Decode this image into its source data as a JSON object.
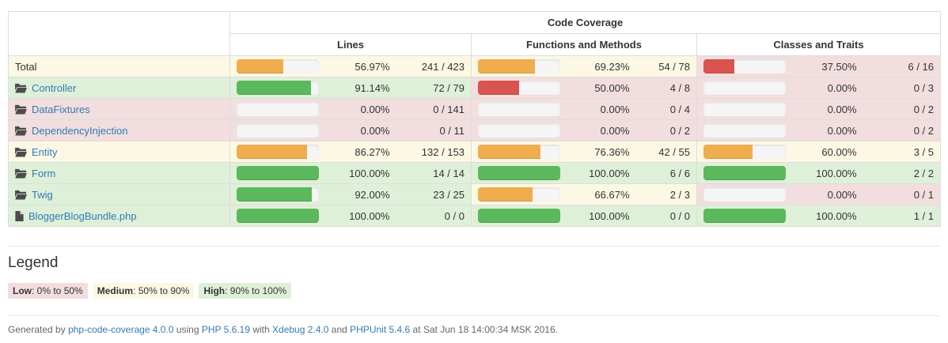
{
  "header": {
    "code_coverage_label": "Code Coverage",
    "group_labels": [
      "Lines",
      "Functions and Methods",
      "Classes and Traits"
    ]
  },
  "rows": [
    {
      "name": "Total",
      "icon": "none",
      "is_link": false,
      "level": "warning",
      "cells": [
        {
          "level": "warning",
          "bar_pct": 56.97,
          "bar_color": "warning",
          "pct": "56.97%",
          "ratio": "241 / 423"
        },
        {
          "level": "warning",
          "bar_pct": 69.23,
          "bar_color": "warning",
          "pct": "69.23%",
          "ratio": "54 / 78"
        },
        {
          "level": "danger",
          "bar_pct": 37.5,
          "bar_color": "danger",
          "pct": "37.50%",
          "ratio": "6 / 16"
        }
      ]
    },
    {
      "name": "Controller",
      "icon": "folder",
      "is_link": true,
      "level": "success",
      "cells": [
        {
          "level": "success",
          "bar_pct": 91.14,
          "bar_color": "success",
          "pct": "91.14%",
          "ratio": "72 / 79"
        },
        {
          "level": "danger",
          "bar_pct": 50.0,
          "bar_color": "danger",
          "pct": "50.00%",
          "ratio": "4 / 8"
        },
        {
          "level": "danger",
          "bar_pct": 0,
          "bar_color": "none",
          "pct": "0.00%",
          "ratio": "0 / 3"
        }
      ]
    },
    {
      "name": "DataFixtures",
      "icon": "folder",
      "is_link": true,
      "level": "danger",
      "cells": [
        {
          "level": "danger",
          "bar_pct": 0,
          "bar_color": "none",
          "pct": "0.00%",
          "ratio": "0 / 141"
        },
        {
          "level": "danger",
          "bar_pct": 0,
          "bar_color": "none",
          "pct": "0.00%",
          "ratio": "0 / 4"
        },
        {
          "level": "danger",
          "bar_pct": 0,
          "bar_color": "none",
          "pct": "0.00%",
          "ratio": "0 / 2"
        }
      ]
    },
    {
      "name": "DependencyInjection",
      "icon": "folder",
      "is_link": true,
      "level": "danger",
      "cells": [
        {
          "level": "danger",
          "bar_pct": 0,
          "bar_color": "none",
          "pct": "0.00%",
          "ratio": "0 / 11"
        },
        {
          "level": "danger",
          "bar_pct": 0,
          "bar_color": "none",
          "pct": "0.00%",
          "ratio": "0 / 2"
        },
        {
          "level": "danger",
          "bar_pct": 0,
          "bar_color": "none",
          "pct": "0.00%",
          "ratio": "0 / 2"
        }
      ]
    },
    {
      "name": "Entity",
      "icon": "folder",
      "is_link": true,
      "level": "warning",
      "cells": [
        {
          "level": "warning",
          "bar_pct": 86.27,
          "bar_color": "warning",
          "pct": "86.27%",
          "ratio": "132 / 153"
        },
        {
          "level": "warning",
          "bar_pct": 76.36,
          "bar_color": "warning",
          "pct": "76.36%",
          "ratio": "42 / 55"
        },
        {
          "level": "warning",
          "bar_pct": 60.0,
          "bar_color": "warning",
          "pct": "60.00%",
          "ratio": "3 / 5"
        }
      ]
    },
    {
      "name": "Form",
      "icon": "folder",
      "is_link": true,
      "level": "success",
      "cells": [
        {
          "level": "success",
          "bar_pct": 100,
          "bar_color": "success",
          "pct": "100.00%",
          "ratio": "14 / 14"
        },
        {
          "level": "success",
          "bar_pct": 100,
          "bar_color": "success",
          "pct": "100.00%",
          "ratio": "6 / 6"
        },
        {
          "level": "success",
          "bar_pct": 100,
          "bar_color": "success",
          "pct": "100.00%",
          "ratio": "2 / 2"
        }
      ]
    },
    {
      "name": "Twig",
      "icon": "folder",
      "is_link": true,
      "level": "success",
      "cells": [
        {
          "level": "success",
          "bar_pct": 92.0,
          "bar_color": "success",
          "pct": "92.00%",
          "ratio": "23 / 25"
        },
        {
          "level": "warning",
          "bar_pct": 66.67,
          "bar_color": "warning",
          "pct": "66.67%",
          "ratio": "2 / 3"
        },
        {
          "level": "danger",
          "bar_pct": 0,
          "bar_color": "none",
          "pct": "0.00%",
          "ratio": "0 / 1"
        }
      ]
    },
    {
      "name": "BloggerBlogBundle.php",
      "icon": "file",
      "is_link": true,
      "level": "success",
      "cells": [
        {
          "level": "success",
          "bar_pct": 100,
          "bar_color": "success",
          "pct": "100.00%",
          "ratio": "0 / 0"
        },
        {
          "level": "success",
          "bar_pct": 100,
          "bar_color": "success",
          "pct": "100.00%",
          "ratio": "0 / 0"
        },
        {
          "level": "success",
          "bar_pct": 100,
          "bar_color": "success",
          "pct": "100.00%",
          "ratio": "1 / 1"
        }
      ]
    }
  ],
  "legend": {
    "heading": "Legend",
    "items": [
      {
        "label": "Low",
        "range": ": 0% to 50%",
        "level": "danger"
      },
      {
        "label": "Medium",
        "range": ": 50% to 90%",
        "level": "warning"
      },
      {
        "label": "High",
        "range": ": 90% to 100%",
        "level": "success"
      }
    ]
  },
  "footer": {
    "generated_by": "Generated by ",
    "tool_link": "php-code-coverage 4.0.0",
    "using": " using ",
    "php_link": "PHP 5.6.19",
    "with": " with ",
    "xdebug_link": "Xdebug 2.4.0",
    "and": " and ",
    "phpunit_link": "PHPUnit 5.4.6",
    "timestamp": " at Sat Jun 18 14:00:34 MSK 2016."
  },
  "colors": {
    "success_bg": "#dff0d8",
    "warning_bg": "#fcf8e3",
    "danger_bg": "#f2dede",
    "bar_success": "#5cb85c",
    "bar_warning": "#f0ad4e",
    "bar_danger": "#d9534f",
    "link": "#337ab7"
  }
}
